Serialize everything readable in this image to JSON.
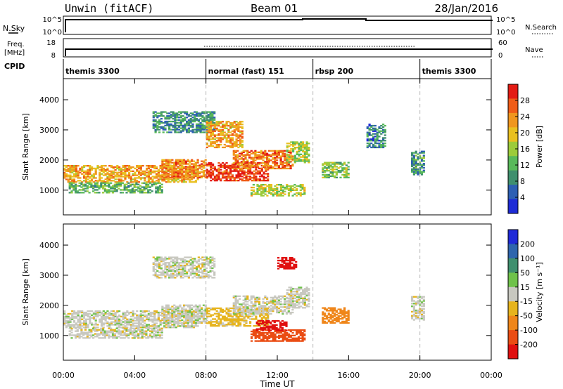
{
  "header": {
    "station": "Unwin (fitACF)",
    "beam": "Beam 01",
    "date": "28/Jan/2016"
  },
  "panels": {
    "nsky": {
      "label": "N.Sky",
      "ticks_left": [
        "10^5",
        "10^0"
      ],
      "ticks_right": [
        "10^5",
        "10^0"
      ],
      "right_label": "N.Search"
    },
    "freq": {
      "label_lines": [
        "Freq.",
        "[MHz]"
      ],
      "ticks_left": [
        "18",
        "8"
      ],
      "ticks_right": [
        "60",
        "0"
      ],
      "right_label": "Nave"
    },
    "cpid": {
      "label": "CPID",
      "modes": [
        {
          "name": "themis 3300",
          "start_h": 0
        },
        {
          "name": "normal (fast) 151",
          "start_h": 8
        },
        {
          "name": "rbsp 200",
          "start_h": 14
        },
        {
          "name": "themis 3300",
          "start_h": 20
        }
      ]
    }
  },
  "colors": {
    "power": [
      "#1e2bd6",
      "#2d5fb3",
      "#3f8f6e",
      "#58b95a",
      "#9ccb3a",
      "#e9c020",
      "#f0961e",
      "#ef5c17",
      "#e31b14"
    ],
    "velocity": [
      "#1f2ad8",
      "#2e65ad",
      "#3f8f6e",
      "#6fc24a",
      "#c8c8c0",
      "#e6b41e",
      "#ef861a",
      "#ea4d14",
      "#e01010"
    ]
  },
  "chart_data": [
    {
      "type": "heatmap",
      "title": "",
      "xlabel": "",
      "ylabel": "Slant Range [km]",
      "x_ticks": [
        "00:00",
        "04:00",
        "08:00",
        "12:00",
        "16:00",
        "20:00",
        "00:00"
      ],
      "x_range_hours": [
        0,
        24
      ],
      "y_ticks": [
        1000,
        2000,
        3000,
        4000
      ],
      "ylim": [
        180,
        4700
      ],
      "colorbar": {
        "label": "Power [dB]",
        "ticks": [
          4,
          8,
          12,
          16,
          20,
          24,
          28
        ],
        "range": [
          0,
          32
        ]
      },
      "echo_regions": [
        {
          "t0": 0.0,
          "t1": 7.5,
          "r0": 1250,
          "r1": 1800,
          "value": 22
        },
        {
          "t0": 0.3,
          "t1": 5.5,
          "r0": 900,
          "r1": 1250,
          "value": 12
        },
        {
          "t0": 5.5,
          "t1": 8.0,
          "r0": 1400,
          "r1": 2000,
          "value": 24
        },
        {
          "t0": 8.0,
          "t1": 11.5,
          "r0": 1300,
          "r1": 1900,
          "value": 29
        },
        {
          "t0": 9.5,
          "t1": 12.8,
          "r0": 1700,
          "r1": 2300,
          "value": 25
        },
        {
          "t0": 12.5,
          "t1": 13.8,
          "r0": 1900,
          "r1": 2600,
          "value": 16
        },
        {
          "t0": 10.5,
          "t1": 13.5,
          "r0": 800,
          "r1": 1200,
          "value": 17
        },
        {
          "t0": 5.0,
          "t1": 8.5,
          "r0": 2900,
          "r1": 3600,
          "value": 9
        },
        {
          "t0": 8.0,
          "t1": 10.0,
          "r0": 2400,
          "r1": 3300,
          "value": 22
        },
        {
          "t0": 14.5,
          "t1": 16.0,
          "r0": 1400,
          "r1": 1900,
          "value": 14
        },
        {
          "t0": 17.0,
          "t1": 18.0,
          "r0": 2400,
          "r1": 3200,
          "value": 8
        },
        {
          "t0": 19.5,
          "t1": 20.2,
          "r0": 1500,
          "r1": 2300,
          "value": 10
        }
      ]
    },
    {
      "type": "heatmap",
      "title": "",
      "xlabel": "Time UT",
      "ylabel": "Slant Range [km]",
      "x_ticks": [
        "00:00",
        "04:00",
        "08:00",
        "12:00",
        "16:00",
        "20:00",
        "00:00"
      ],
      "x_range_hours": [
        0,
        24
      ],
      "y_ticks": [
        1000,
        2000,
        3000,
        4000
      ],
      "ylim": [
        180,
        4700
      ],
      "colorbar": {
        "label": "Velocity [m s⁻¹]",
        "ticks": [
          200,
          100,
          50,
          15,
          -15,
          -50,
          -100,
          -200
        ],
        "range": [
          -250,
          250
        ]
      },
      "echo_regions": [
        {
          "t0": 0.0,
          "t1": 7.5,
          "r0": 1250,
          "r1": 1800,
          "value": 0
        },
        {
          "t0": 0.3,
          "t1": 5.5,
          "r0": 900,
          "r1": 1250,
          "value": 0
        },
        {
          "t0": 5.5,
          "t1": 8.0,
          "r0": 1400,
          "r1": 2000,
          "value": 0
        },
        {
          "t0": 8.0,
          "t1": 11.5,
          "r0": 1300,
          "r1": 1900,
          "value": -30
        },
        {
          "t0": 9.5,
          "t1": 12.8,
          "r0": 1700,
          "r1": 2300,
          "value": 0
        },
        {
          "t0": 12.5,
          "t1": 13.8,
          "r0": 1900,
          "r1": 2600,
          "value": 0
        },
        {
          "t0": 10.5,
          "t1": 13.5,
          "r0": 800,
          "r1": 1200,
          "value": -120
        },
        {
          "t0": 10.8,
          "t1": 12.5,
          "r0": 1150,
          "r1": 1500,
          "value": -220
        },
        {
          "t0": 5.0,
          "t1": 8.5,
          "r0": 2900,
          "r1": 3600,
          "value": 0
        },
        {
          "t0": 12.0,
          "t1": 13.0,
          "r0": 3200,
          "r1": 3600,
          "value": -220
        },
        {
          "t0": 14.5,
          "t1": 16.0,
          "r0": 1400,
          "r1": 1900,
          "value": -80
        },
        {
          "t0": 19.5,
          "t1": 20.2,
          "r0": 1500,
          "r1": 2300,
          "value": 0
        }
      ]
    }
  ]
}
